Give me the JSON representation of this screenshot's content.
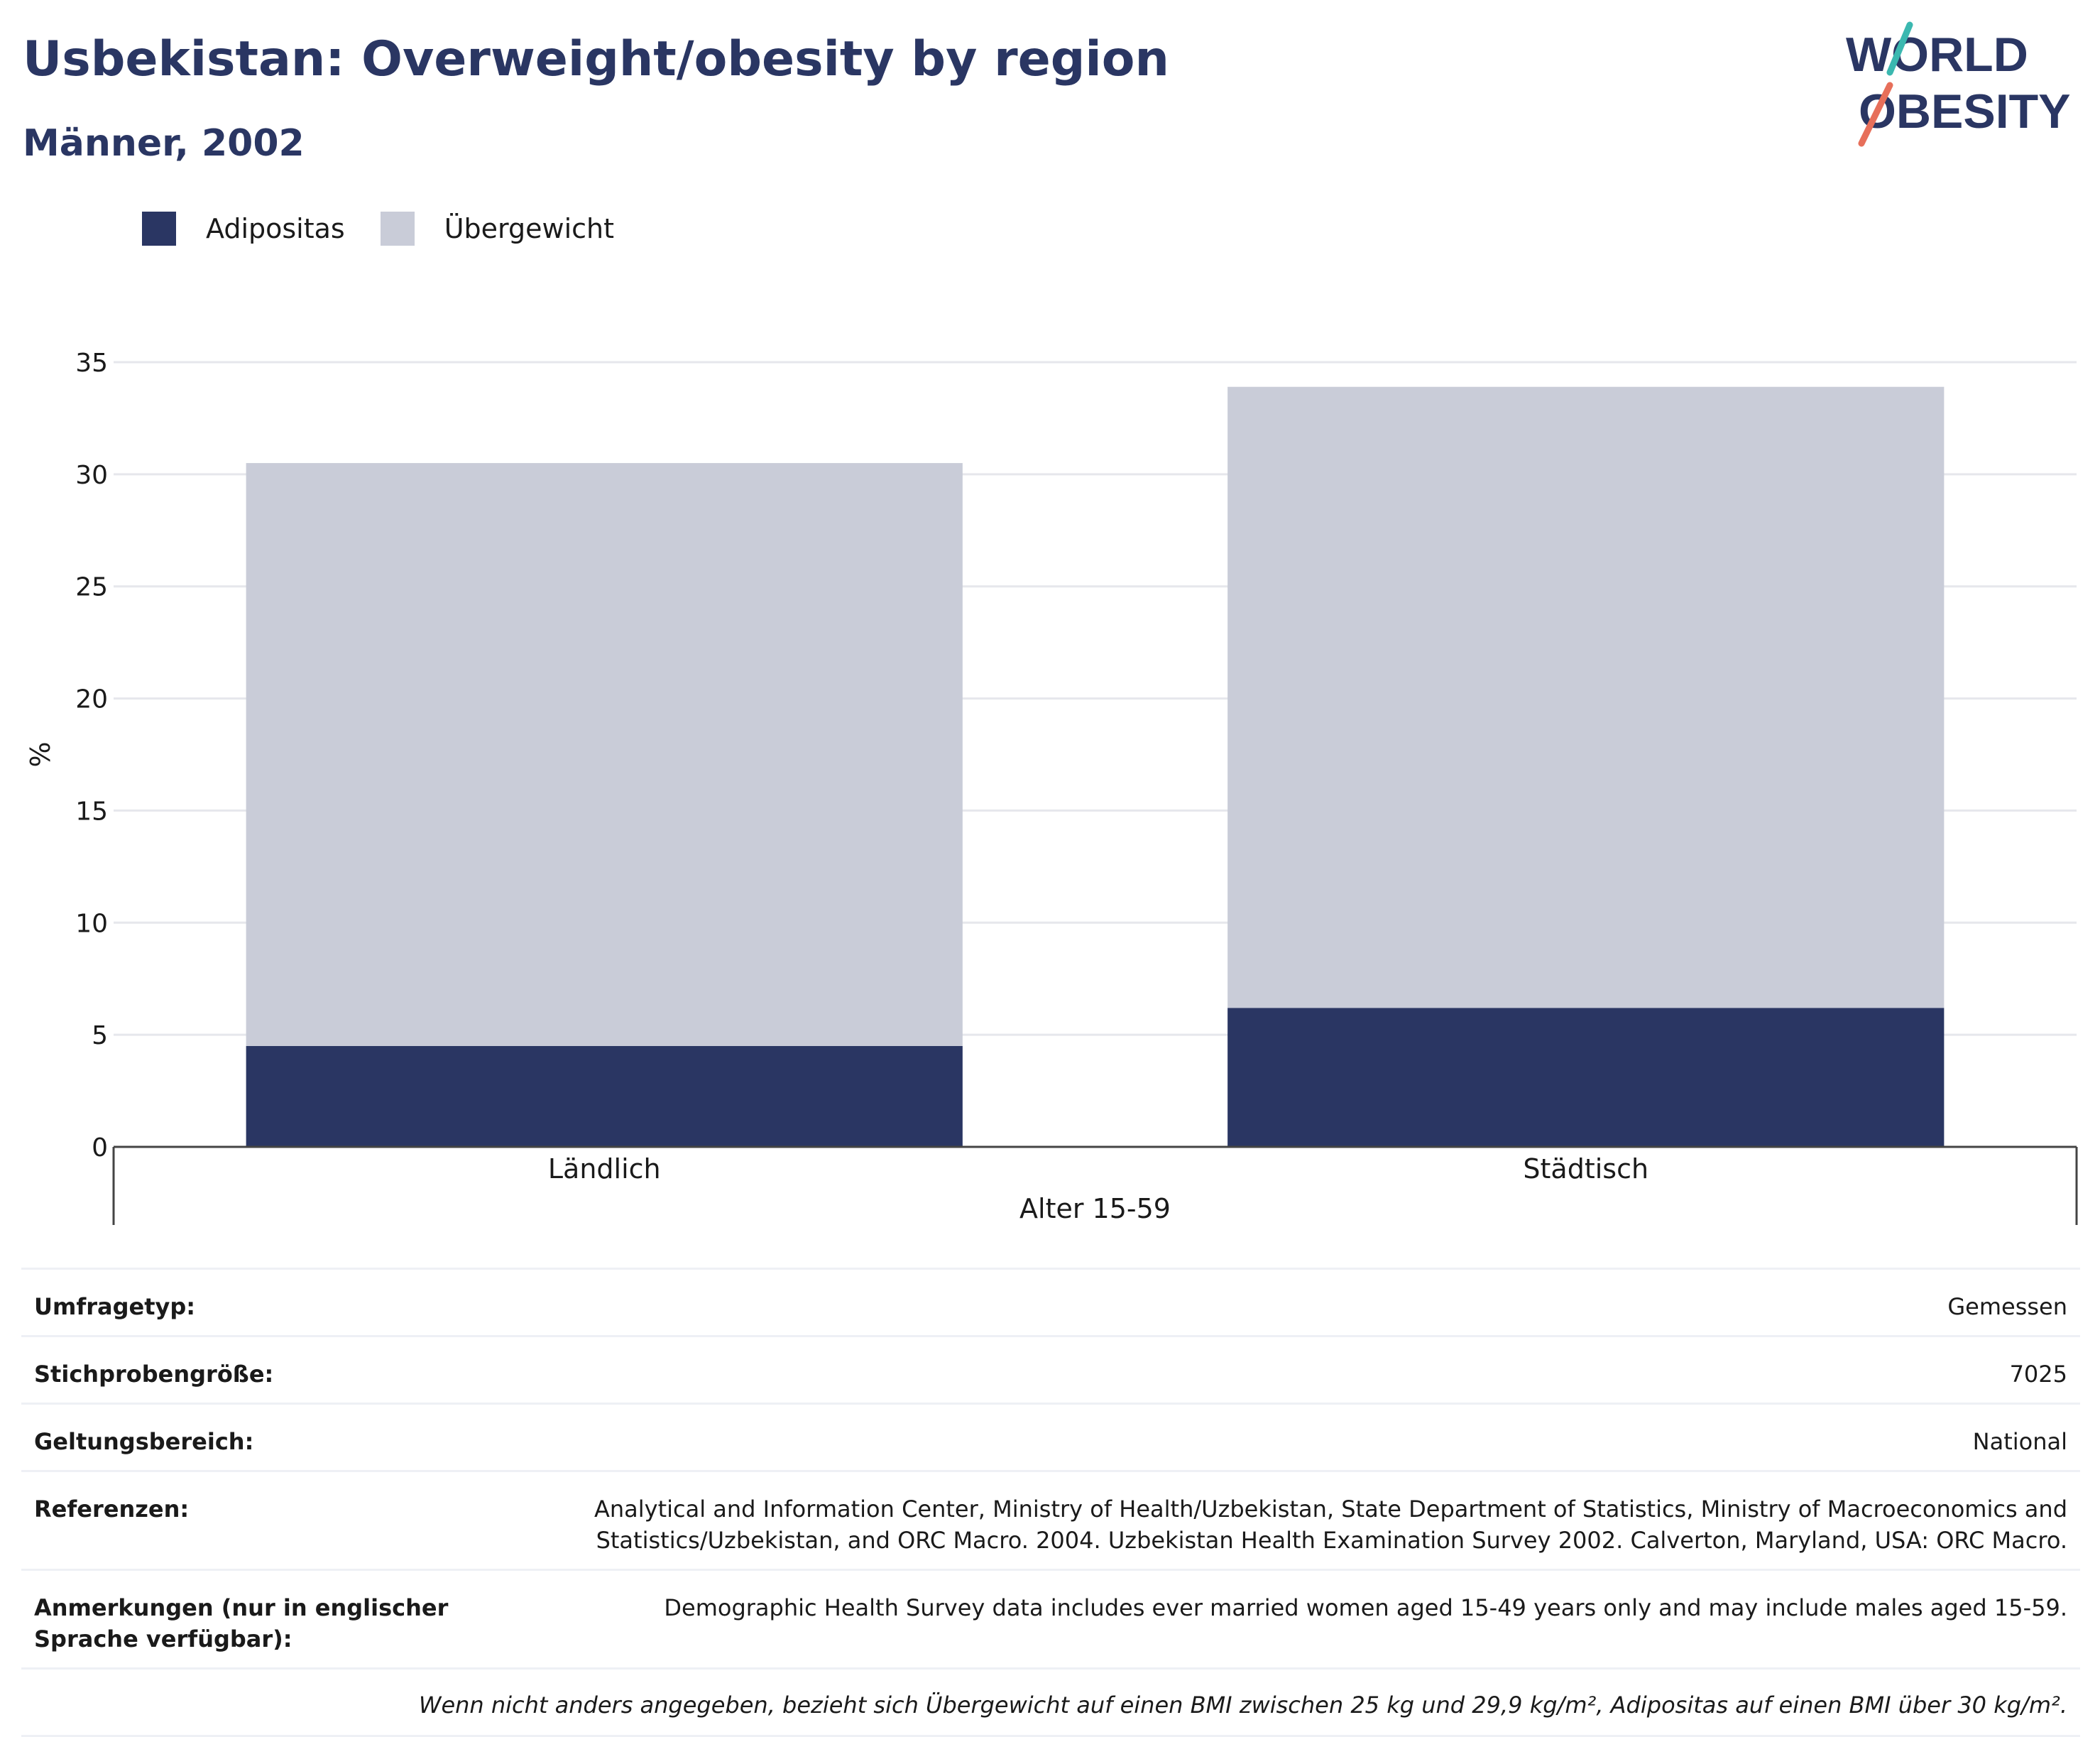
{
  "header": {
    "title": "Usbekistan: Overweight/obesity by region",
    "subtitle": "Männer, 2002"
  },
  "logo": {
    "line1": "WORLD",
    "line2": "OBESITY",
    "colors": {
      "text": "#2a3663",
      "slash_top": "#3bb8b0",
      "slash_bottom": "#e76f5a"
    }
  },
  "legend": [
    {
      "label": "Adipositas",
      "color": "#2a3663"
    },
    {
      "label": "Übergewicht",
      "color": "#c9ccd8"
    }
  ],
  "chart_data": {
    "type": "bar",
    "stacked": true,
    "categories": [
      "Ländlich",
      "Städtisch"
    ],
    "series": [
      {
        "name": "Adipositas",
        "color": "#2a3663",
        "values": [
          4.5,
          6.2
        ]
      },
      {
        "name": "Übergewicht",
        "color": "#c9ccd8",
        "values": [
          26.0,
          27.7
        ]
      }
    ],
    "ylabel": "%",
    "xgroup_label": "Alter 15-59",
    "ylim": [
      0,
      35
    ],
    "yticks": [
      0,
      5,
      10,
      15,
      20,
      25,
      30,
      35
    ],
    "grid": true,
    "legend_position": "top-left"
  },
  "info": {
    "rows": [
      {
        "key": "Umfragetyp:",
        "value": "Gemessen"
      },
      {
        "key": "Stichprobengröße:",
        "value": "7025"
      },
      {
        "key": "Geltungsbereich:",
        "value": "National"
      },
      {
        "key": "Referenzen:",
        "value": "Analytical and Information Center, Ministry of Health/Uzbekistan, State Department of Statistics, Ministry of Macroeconomics and Statistics/Uzbekistan, and ORC Macro. 2004. Uzbekistan Health Examination Survey 2002. Calverton, Maryland, USA: ORC Macro."
      },
      {
        "key": "Anmerkungen (nur in englischer Sprache verfügbar):",
        "value": "Demographic Health Survey data includes ever married women aged 15-49 years only and may include males aged 15-59."
      }
    ],
    "note": "Wenn nicht anders angegeben, bezieht sich Übergewicht auf einen BMI zwischen 25 kg und 29,9 kg/m², Adipositas auf einen BMI über 30 kg/m²."
  }
}
